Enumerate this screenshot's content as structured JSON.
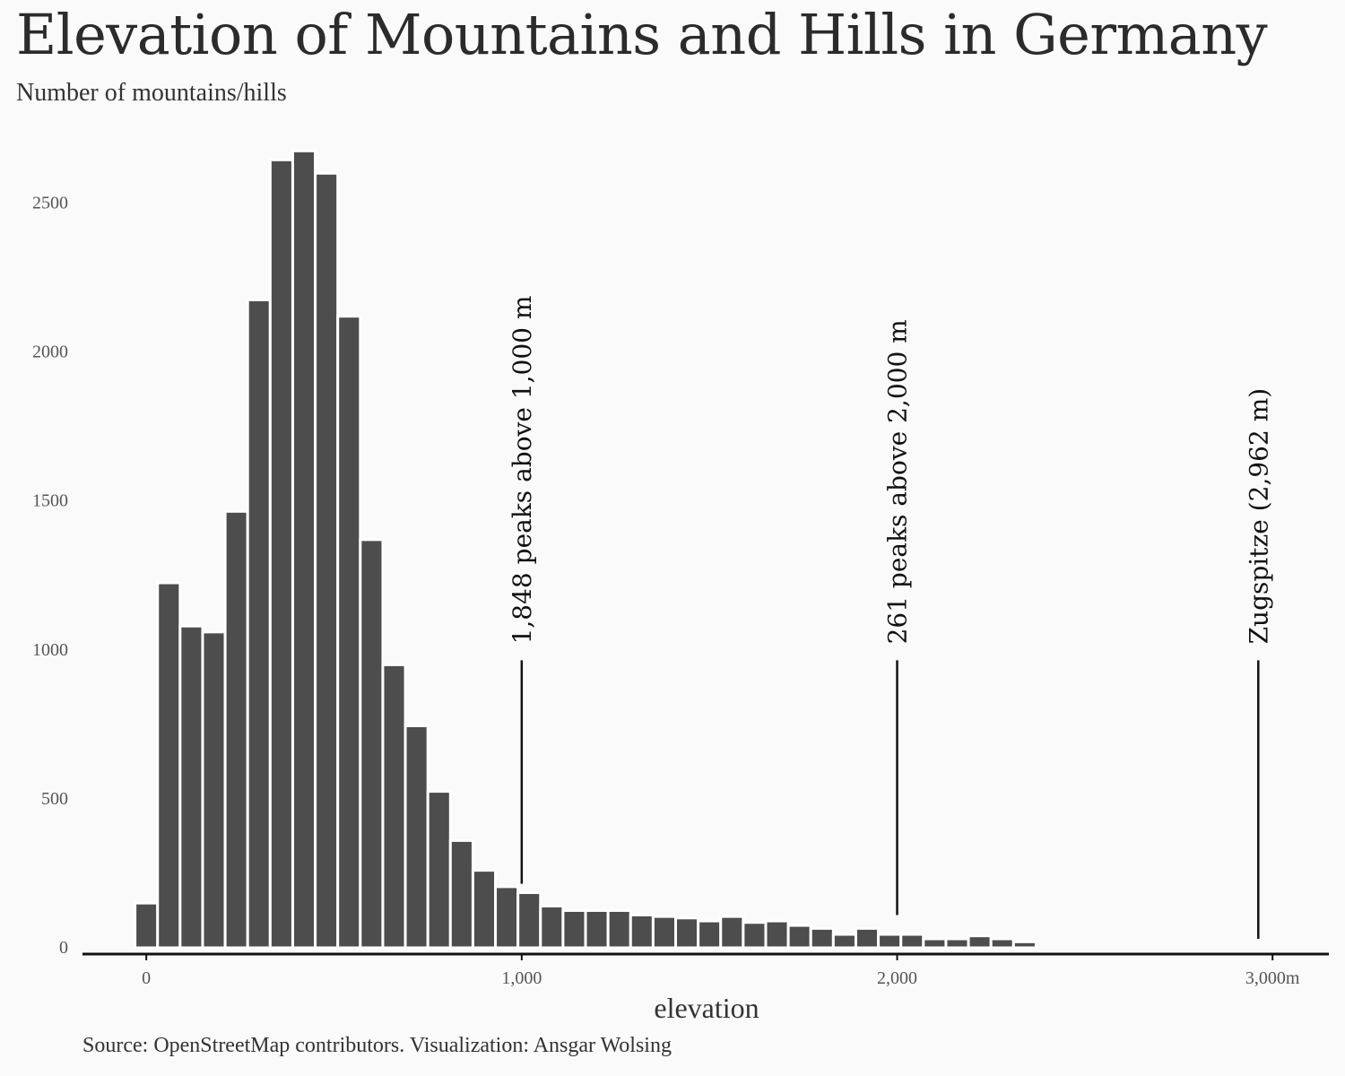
{
  "title": "Elevation of Mountains and Hills in Germany",
  "subtitle": "Number of mountains/hills",
  "caption": "Source: OpenStreetMap contributors. Visualization: Ansgar Wolsing",
  "colors": {
    "bar": "#4d4d4d",
    "background": "#fafafa",
    "annotation": "#111111"
  },
  "chart_data": {
    "type": "bar",
    "xlabel": "elevation",
    "ylabel": "",
    "bin_width": 60,
    "xlim": [
      -170,
      3150
    ],
    "ylim": [
      0,
      2700
    ],
    "x_ticks": [
      {
        "value": 0,
        "label": "0"
      },
      {
        "value": 1000,
        "label": "1,000"
      },
      {
        "value": 2000,
        "label": "2,000"
      },
      {
        "value": 3000,
        "label": "3,000m"
      }
    ],
    "y_ticks": [
      {
        "value": 0,
        "label": "0"
      },
      {
        "value": 500,
        "label": "500"
      },
      {
        "value": 1000,
        "label": "1000"
      },
      {
        "value": 1500,
        "label": "1500"
      },
      {
        "value": 2000,
        "label": "2000"
      },
      {
        "value": 2500,
        "label": "2500"
      }
    ],
    "bins": [
      {
        "x": 0,
        "count": 150
      },
      {
        "x": 60,
        "count": 1225
      },
      {
        "x": 120,
        "count": 1080
      },
      {
        "x": 180,
        "count": 1060
      },
      {
        "x": 240,
        "count": 1465
      },
      {
        "x": 300,
        "count": 2175
      },
      {
        "x": 360,
        "count": 2645
      },
      {
        "x": 420,
        "count": 2675
      },
      {
        "x": 480,
        "count": 2600
      },
      {
        "x": 540,
        "count": 2120
      },
      {
        "x": 600,
        "count": 1370
      },
      {
        "x": 660,
        "count": 950
      },
      {
        "x": 720,
        "count": 745
      },
      {
        "x": 780,
        "count": 525
      },
      {
        "x": 840,
        "count": 360
      },
      {
        "x": 900,
        "count": 260
      },
      {
        "x": 960,
        "count": 205
      },
      {
        "x": 1020,
        "count": 185
      },
      {
        "x": 1080,
        "count": 140
      },
      {
        "x": 1140,
        "count": 125
      },
      {
        "x": 1200,
        "count": 125
      },
      {
        "x": 1260,
        "count": 125
      },
      {
        "x": 1320,
        "count": 110
      },
      {
        "x": 1380,
        "count": 105
      },
      {
        "x": 1440,
        "count": 100
      },
      {
        "x": 1500,
        "count": 90
      },
      {
        "x": 1560,
        "count": 105
      },
      {
        "x": 1620,
        "count": 85
      },
      {
        "x": 1680,
        "count": 90
      },
      {
        "x": 1740,
        "count": 75
      },
      {
        "x": 1800,
        "count": 65
      },
      {
        "x": 1860,
        "count": 45
      },
      {
        "x": 1920,
        "count": 65
      },
      {
        "x": 1980,
        "count": 45
      },
      {
        "x": 2040,
        "count": 45
      },
      {
        "x": 2100,
        "count": 30
      },
      {
        "x": 2160,
        "count": 30
      },
      {
        "x": 2220,
        "count": 40
      },
      {
        "x": 2280,
        "count": 30
      },
      {
        "x": 2340,
        "count": 20
      }
    ],
    "annotations": [
      {
        "x": 1000,
        "label": "1,848 peaks above 1,000 m",
        "line_from": 215,
        "line_to": 965
      },
      {
        "x": 2000,
        "label": "261 peaks above 2,000 m",
        "line_from": 110,
        "line_to": 965
      },
      {
        "x": 2962,
        "label": "Zugspitze (2,962 m)",
        "line_from": 30,
        "line_to": 965
      }
    ]
  }
}
